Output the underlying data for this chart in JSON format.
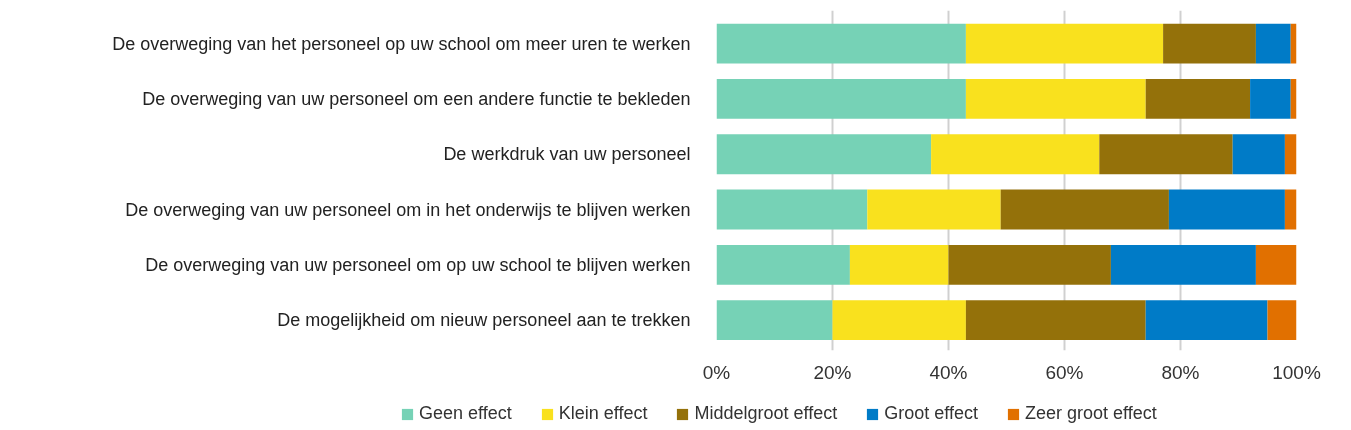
{
  "chart_data": {
    "type": "bar",
    "orientation": "horizontal",
    "stacked": true,
    "categories": [
      "De overweging van het personeel op uw school om meer uren te werken",
      "De overweging van uw personeel om een andere functie te bekleden",
      "De werkdruk van uw personeel",
      "De overweging van uw personeel om in het onderwijs te blijven werken",
      "De overweging van uw personeel om op uw school te blijven werken",
      "De mogelijkheid om nieuw personeel aan te trekken"
    ],
    "series": [
      {
        "name": "Geen effect",
        "color": "#76d2b6",
        "values": [
          43,
          43,
          37,
          26,
          23,
          20
        ]
      },
      {
        "name": "Klein effect",
        "color": "#f9e11e",
        "values": [
          34,
          31,
          29,
          23,
          17,
          23
        ]
      },
      {
        "name": "Middelgroot effect",
        "color": "#94710a",
        "values": [
          16,
          18,
          23,
          29,
          28,
          31
        ]
      },
      {
        "name": "Groot effect",
        "color": "#007bc7",
        "values": [
          6,
          7,
          9,
          20,
          25,
          21
        ]
      },
      {
        "name": "Zeer groot effect",
        "color": "#e17000",
        "values": [
          1,
          1,
          2,
          2,
          7,
          5
        ]
      }
    ],
    "xlim": [
      0,
      100
    ],
    "xticks": [
      {
        "value": 0,
        "label": "0%"
      },
      {
        "value": 20,
        "label": "20%"
      },
      {
        "value": 40,
        "label": "40%"
      },
      {
        "value": 60,
        "label": "60%"
      },
      {
        "value": 80,
        "label": "80%"
      },
      {
        "value": 100,
        "label": "100%"
      }
    ],
    "grid": "x",
    "legend": "bottom"
  }
}
